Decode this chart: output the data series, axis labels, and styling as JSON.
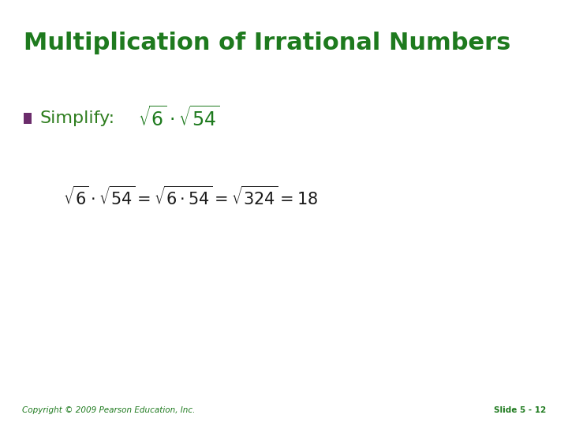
{
  "title": "Multiplication of Irrational Numbers",
  "title_color": "#1E7A1E",
  "title_fontsize": 22,
  "background_color": "#FFFFFF",
  "bullet_color": "#6B2C6B",
  "simplify_label": "Simplify:",
  "simplify_label_color": "#2E7D1E",
  "simplify_label_fontsize": 16,
  "math_green_color": "#1E7A1E",
  "math_black_color": "#1a1a1a",
  "copyright_text": "Copyright © 2009 Pearson Education, Inc.",
  "slide_text": "Slide 5 - 12",
  "footer_color": "#1E7A1E",
  "footer_fontsize": 7.5
}
